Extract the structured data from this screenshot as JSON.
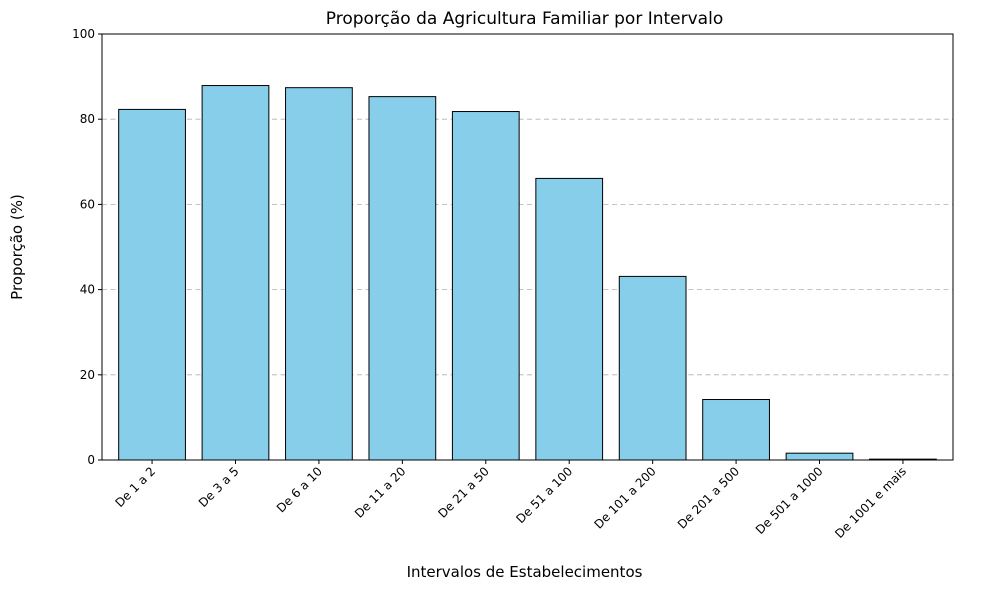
{
  "chart_data": {
    "type": "bar",
    "title": "Proporção da Agricultura Familiar por Intervalo",
    "xlabel": "Intervalos de Estabelecimentos",
    "ylabel": "Proporção (%)",
    "categories": [
      "De 1 a 2",
      "De 3 a 5",
      "De 6 a 10",
      "De 11 a 20",
      "De 21 a 50",
      "De 51 a 100",
      "De 101 a 200",
      "De 201 a 500",
      "De 501 a 1000",
      "De 1001 e mais"
    ],
    "values": [
      82.3,
      87.9,
      87.4,
      85.3,
      81.8,
      66.1,
      43.1,
      14.2,
      1.6,
      0.2
    ],
    "ylim": [
      0,
      100
    ],
    "yticks": [
      0,
      20,
      40,
      60,
      80,
      100
    ],
    "grid": "y-dashed",
    "bar_color": "#87ceeb",
    "edge_color": "#000000"
  }
}
